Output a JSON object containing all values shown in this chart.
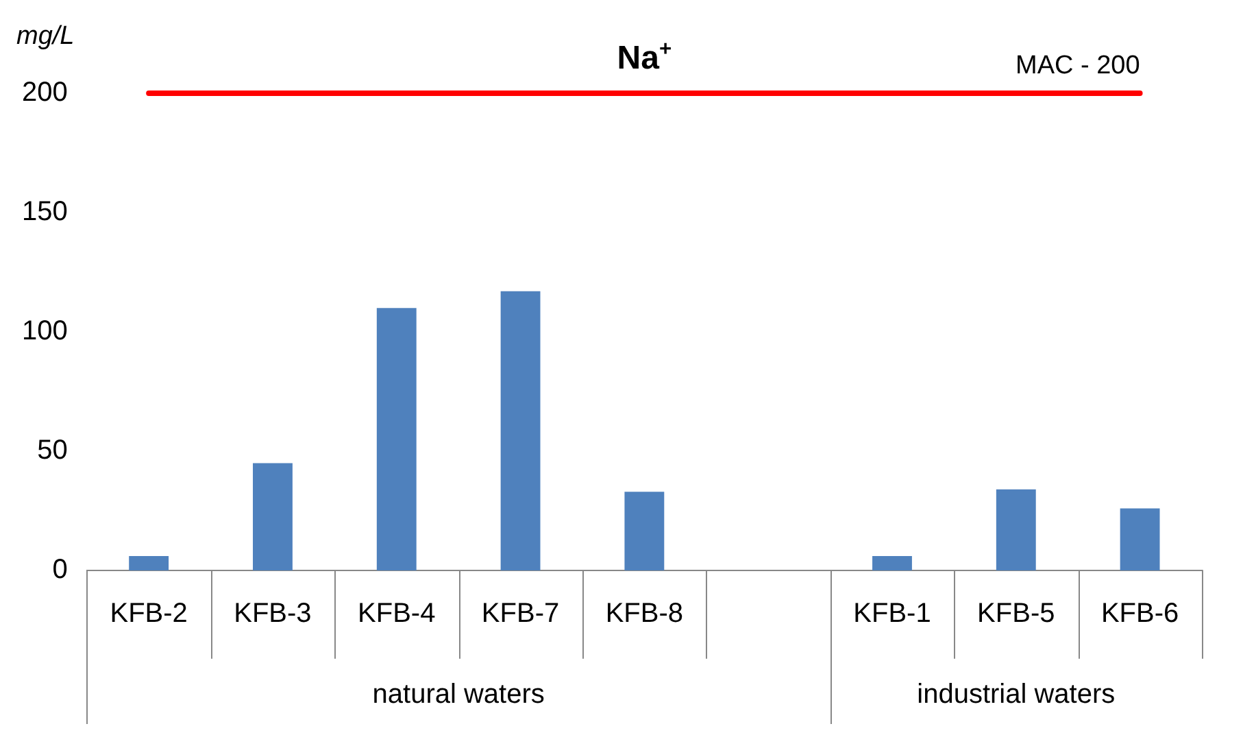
{
  "chart_data": {
    "type": "bar",
    "title": "Na$^{+}$",
    "ylabel": "mg/L",
    "categories": [
      "KFB-2",
      "KFB-3",
      "KFB-4",
      "KFB-7",
      "KFB-8",
      null,
      "KFB-1",
      "KFB-5",
      "KFB-6"
    ],
    "values": [
      6,
      45,
      110,
      117,
      33,
      null,
      6,
      34,
      26
    ],
    "color": "#4f81bd",
    "ylim": [
      0,
      200
    ],
    "yticks": [
      0,
      50,
      100,
      150,
      200
    ],
    "grid": false,
    "legend": false,
    "ref_lines": [
      {
        "axis": "y",
        "value": 200,
        "label": "MAC - 200",
        "color": "#ff0000"
      }
    ],
    "annotations": [
      "natural waters",
      "industrial waters"
    ]
  }
}
